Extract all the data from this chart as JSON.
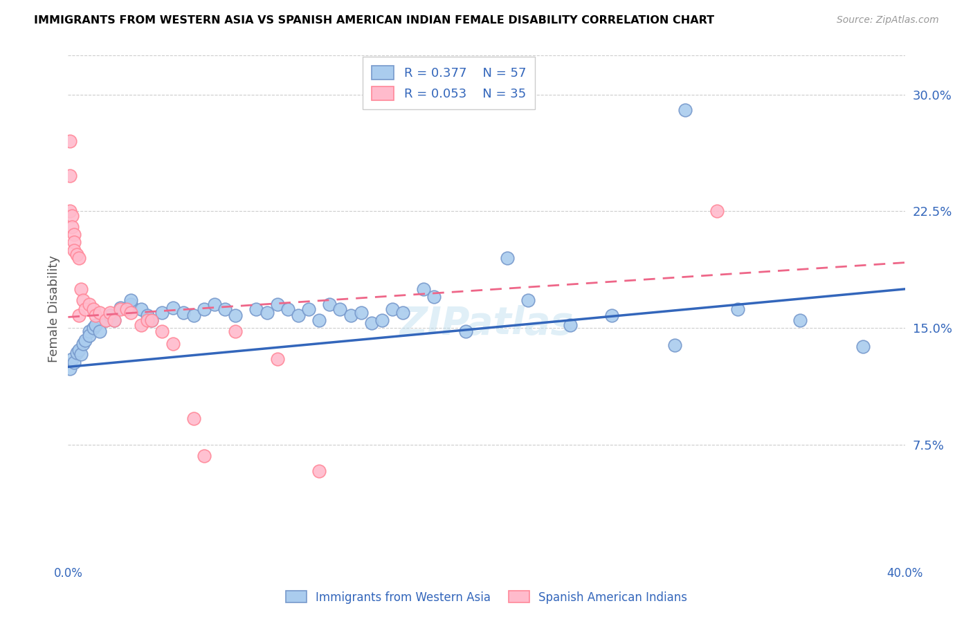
{
  "title": "IMMIGRANTS FROM WESTERN ASIA VS SPANISH AMERICAN INDIAN FEMALE DISABILITY CORRELATION CHART",
  "source": "Source: ZipAtlas.com",
  "ylabel": "Female Disability",
  "right_yticks": [
    "30.0%",
    "22.5%",
    "15.0%",
    "7.5%"
  ],
  "right_ytick_vals": [
    0.3,
    0.225,
    0.15,
    0.075
  ],
  "xmin": 0.0,
  "xmax": 0.4,
  "ymin": 0.0,
  "ymax": 0.325,
  "legend_r1": "R = 0.377",
  "legend_n1": "N = 57",
  "legend_r2": "R = 0.053",
  "legend_n2": "N = 35",
  "color_blue_face": "#AACCEE",
  "color_blue_edge": "#7799CC",
  "color_pink_face": "#FFBBCC",
  "color_pink_edge": "#FF8899",
  "color_blue_line": "#3366BB",
  "color_pink_line": "#EE6688",
  "watermark_color": "#BBDDEE",
  "grid_color": "#CCCCCC",
  "blue_trend_x0": 0.0,
  "blue_trend_y0": 0.125,
  "blue_trend_x1": 0.4,
  "blue_trend_y1": 0.175,
  "pink_trend_x0": 0.0,
  "pink_trend_y0": 0.157,
  "pink_trend_x1": 0.4,
  "pink_trend_y1": 0.192,
  "blue_x": [
    0.001,
    0.002,
    0.003,
    0.004,
    0.005,
    0.006,
    0.007,
    0.008,
    0.01,
    0.01,
    0.012,
    0.013,
    0.015,
    0.018,
    0.02,
    0.022,
    0.025,
    0.03,
    0.03,
    0.035,
    0.038,
    0.04,
    0.045,
    0.05,
    0.055,
    0.06,
    0.065,
    0.07,
    0.075,
    0.08,
    0.09,
    0.095,
    0.1,
    0.105,
    0.11,
    0.115,
    0.12,
    0.125,
    0.13,
    0.135,
    0.14,
    0.145,
    0.15,
    0.155,
    0.16,
    0.17,
    0.175,
    0.19,
    0.21,
    0.22,
    0.24,
    0.26,
    0.29,
    0.32,
    0.35,
    0.38,
    0.295
  ],
  "blue_y": [
    0.124,
    0.13,
    0.128,
    0.134,
    0.136,
    0.133,
    0.14,
    0.142,
    0.148,
    0.145,
    0.15,
    0.152,
    0.148,
    0.155,
    0.158,
    0.155,
    0.163,
    0.165,
    0.168,
    0.162,
    0.158,
    0.155,
    0.16,
    0.163,
    0.16,
    0.158,
    0.162,
    0.165,
    0.162,
    0.158,
    0.162,
    0.16,
    0.165,
    0.162,
    0.158,
    0.162,
    0.155,
    0.165,
    0.162,
    0.158,
    0.16,
    0.153,
    0.155,
    0.162,
    0.16,
    0.175,
    0.17,
    0.148,
    0.195,
    0.168,
    0.152,
    0.158,
    0.139,
    0.162,
    0.155,
    0.138,
    0.29
  ],
  "pink_x": [
    0.001,
    0.001,
    0.001,
    0.002,
    0.002,
    0.003,
    0.003,
    0.003,
    0.004,
    0.005,
    0.005,
    0.006,
    0.007,
    0.008,
    0.01,
    0.012,
    0.013,
    0.015,
    0.018,
    0.02,
    0.022,
    0.025,
    0.028,
    0.03,
    0.035,
    0.038,
    0.04,
    0.045,
    0.05,
    0.06,
    0.065,
    0.08,
    0.1,
    0.12,
    0.31
  ],
  "pink_y": [
    0.27,
    0.248,
    0.225,
    0.222,
    0.215,
    0.21,
    0.205,
    0.2,
    0.197,
    0.195,
    0.158,
    0.175,
    0.168,
    0.162,
    0.165,
    0.162,
    0.158,
    0.16,
    0.155,
    0.16,
    0.155,
    0.162,
    0.162,
    0.16,
    0.152,
    0.155,
    0.155,
    0.148,
    0.14,
    0.092,
    0.068,
    0.148,
    0.13,
    0.058,
    0.225
  ]
}
